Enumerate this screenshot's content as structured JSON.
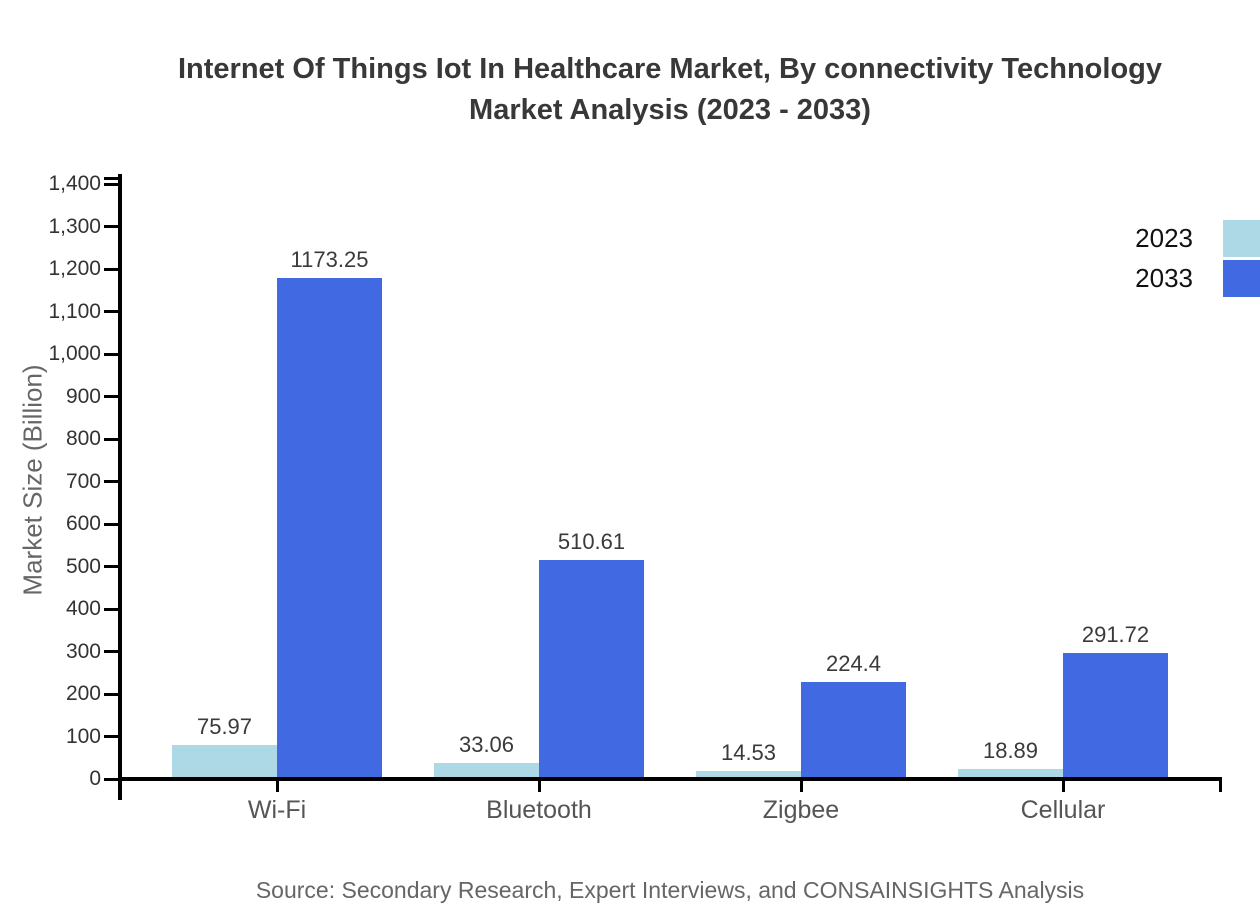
{
  "header": {
    "title_line1": "Internet Of Things Iot In Healthcare Market, By connectivity Technology",
    "title_line2": "Market Analysis (2023 - 2033)"
  },
  "chart_data": {
    "type": "bar",
    "title": "Internet Of Things Iot In Healthcare Market, By connectivity Technology Market Analysis (2023 - 2033)",
    "categories": [
      "Wi-Fi",
      "Bluetooth",
      "Zigbee",
      "Cellular"
    ],
    "series": [
      {
        "name": "2023",
        "color": "#ADD8E6",
        "values": [
          75.97,
          33.06,
          14.53,
          18.89
        ],
        "labels": [
          "75.97",
          "33.06",
          "14.53",
          "18.89"
        ]
      },
      {
        "name": "2033",
        "color": "#4169E1",
        "values": [
          1173.25,
          510.61,
          224.4,
          291.72
        ],
        "labels": [
          "1173.25",
          "510.61",
          "224.4",
          "291.72"
        ]
      }
    ],
    "ylabel": "Market Size (Billion)",
    "ylim": [
      0,
      1400
    ],
    "ytick_step": 100,
    "ytick_labels": [
      "0",
      "100",
      "200",
      "300",
      "400",
      "500",
      "600",
      "700",
      "800",
      "900",
      "1,000",
      "1,100",
      "1,200",
      "1,300",
      "1,400"
    ],
    "grid": false,
    "legend_position": "top-right"
  },
  "legend": {
    "items": [
      {
        "label": "2023",
        "color": "#ADD8E6"
      },
      {
        "label": "2033",
        "color": "#4169E1"
      }
    ]
  },
  "footer": {
    "source": "Source: Secondary Research, Expert Interviews, and CONSAINSIGHTS Analysis"
  }
}
